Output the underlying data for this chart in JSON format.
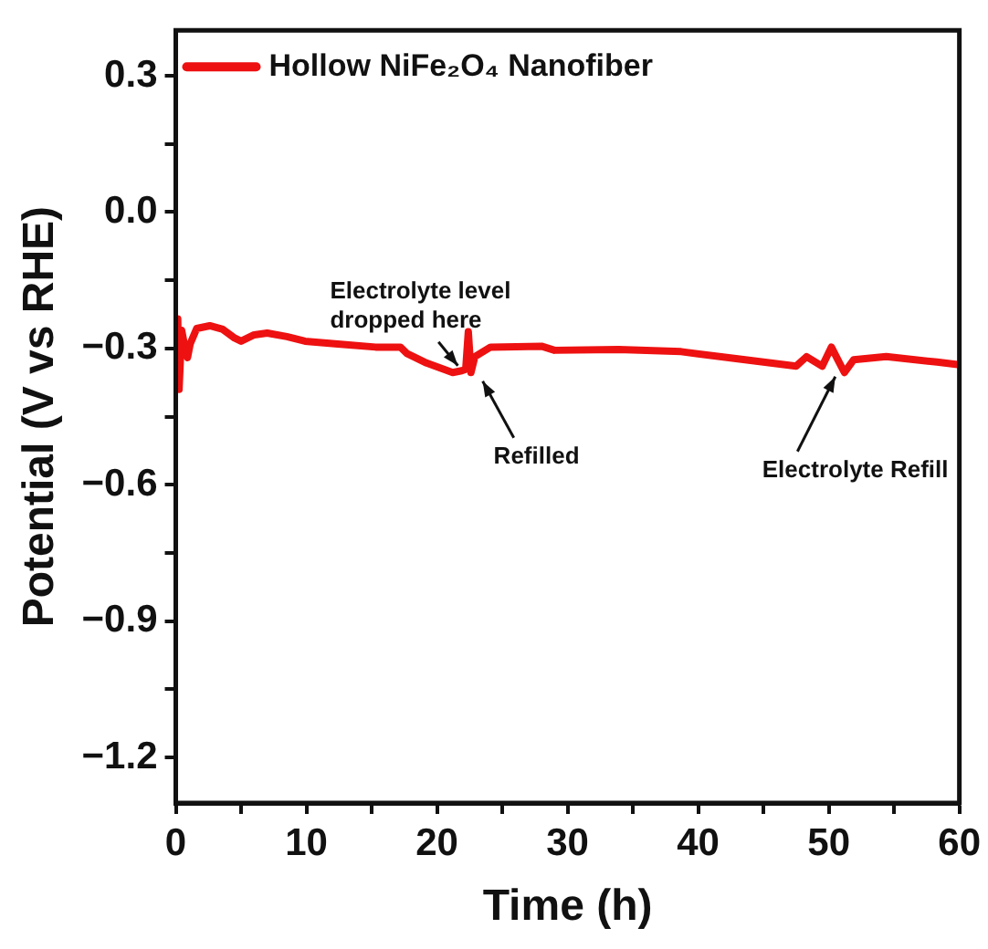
{
  "chart_data": {
    "type": "line",
    "xlabel": "Time (h)",
    "ylabel": "Potential (V vs RHE)",
    "xlim": [
      0,
      60
    ],
    "ylim": [
      -1.3,
      0.4
    ],
    "xticks": [
      0,
      {
        "value": 5,
        "label": null
      },
      10,
      {
        "value": 15,
        "label": null
      },
      20,
      {
        "value": 25,
        "label": null
      },
      30,
      {
        "value": 35,
        "label": null
      },
      40,
      {
        "value": 45,
        "label": null
      },
      50,
      {
        "value": 55,
        "label": null
      },
      60
    ],
    "yticks": [
      {
        "value": -1.2,
        "label": "−1.2"
      },
      {
        "value": -1.05,
        "label": null
      },
      {
        "value": -0.9,
        "label": "−0.9"
      },
      {
        "value": -0.75,
        "label": null
      },
      {
        "value": -0.6,
        "label": "−0.6"
      },
      {
        "value": -0.45,
        "label": null
      },
      {
        "value": -0.3,
        "label": "−0.3"
      },
      {
        "value": -0.15,
        "label": null
      },
      {
        "value": 0,
        "label": "0.0"
      },
      {
        "value": 0.15,
        "label": null
      },
      {
        "value": 0.3,
        "label": "0.3"
      }
    ],
    "grid": false,
    "legend": "top left",
    "marker": "none",
    "line_style": "solid",
    "x": [
      0,
      0.15,
      0.25,
      0.45,
      0.65,
      0.9,
      1.1,
      1.6,
      2.6,
      3.6,
      4.5,
      5.0,
      6.0,
      7.0,
      8.5,
      9.9,
      12.4,
      15.3,
      17.2,
      17.7,
      19.2,
      21.2,
      21.9,
      22.2,
      22.4,
      22.6,
      22.9,
      24.1,
      28.0,
      29.0,
      33.9,
      38.7,
      43.6,
      47.5,
      48.3,
      49.5,
      50.2,
      50.7,
      51.2,
      51.9,
      54.4,
      58.3,
      60
    ],
    "series": [
      {
        "name": "Hollow NiFe₂O₄ Nanofiber",
        "color": "#ee1111",
        "values": [
          -0.32,
          -0.235,
          -0.39,
          -0.26,
          -0.29,
          -0.32,
          -0.29,
          -0.256,
          -0.25,
          -0.258,
          -0.277,
          -0.284,
          -0.27,
          -0.266,
          -0.274,
          -0.284,
          -0.29,
          -0.297,
          -0.297,
          -0.311,
          -0.332,
          -0.353,
          -0.349,
          -0.346,
          -0.263,
          -0.353,
          -0.318,
          -0.297,
          -0.295,
          -0.304,
          -0.302,
          -0.307,
          -0.325,
          -0.339,
          -0.318,
          -0.339,
          -0.297,
          -0.325,
          -0.353,
          -0.325,
          -0.318,
          -0.33,
          -0.336
        ]
      }
    ],
    "annotations": [
      {
        "text": "Electrolyte level\ndropped here",
        "x": 21.6,
        "y": -0.35
      },
      {
        "text": "Refilled",
        "x": 23.5,
        "y": -0.36
      },
      {
        "text": "Electrolyte Refill",
        "x": 50.5,
        "y": -0.35
      }
    ]
  }
}
